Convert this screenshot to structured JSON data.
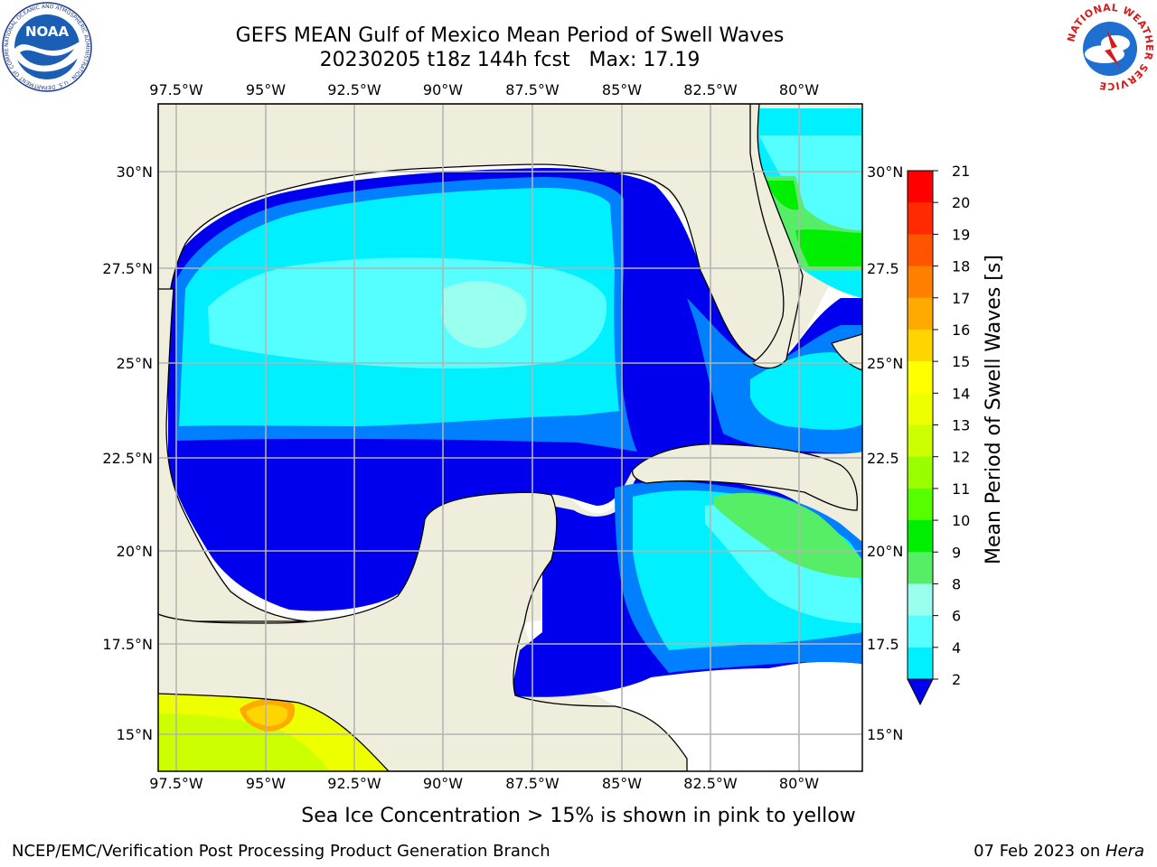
{
  "title": {
    "line1": "GEFS MEAN Gulf of Mexico Mean Period of Swell Waves",
    "line2": "20230205 t18z 144h fcst   Max: 17.19"
  },
  "map": {
    "lon_labels": [
      "97.5°W",
      "95°W",
      "92.5°W",
      "90°W",
      "87.5°W",
      "85°W",
      "82.5°W",
      "80°W"
    ],
    "lat_labels_left": [
      "30°N",
      "27.5°N",
      "25°N",
      "22.5°N",
      "20°N",
      "17.5°N",
      "15°N"
    ],
    "lat_labels_right": [
      "30°N",
      "27.5",
      "25°N",
      "22.5",
      "20°N",
      "17.5",
      "15°N"
    ],
    "colors": {
      "land": "#efeddc",
      "no_data": "#ffffff",
      "grid": "#b4b4b4",
      "coast": "#000000"
    }
  },
  "colorbar": {
    "label": "Mean Period of Swell Waves [s]",
    "ticks": [
      "21",
      "20",
      "19",
      "18",
      "17",
      "16",
      "15",
      "14",
      "13",
      "12",
      "11",
      "10",
      "9",
      "8",
      "6",
      "4",
      "2"
    ],
    "colors": [
      "#ff0000",
      "#ff2a00",
      "#ff5500",
      "#ff8000",
      "#ffaa00",
      "#ffd500",
      "#ffff00",
      "#eeff00",
      "#ccff00",
      "#99ff00",
      "#55ff00",
      "#00ee00",
      "#55ee66",
      "#99ffee",
      "#55ffff",
      "#00f0ff",
      "#0080ff",
      "#0000ee"
    ]
  },
  "caption": "Sea Ice Concentration > 15% is shown in pink to yellow",
  "footer": {
    "left": "NCEP/EMC/Verification Post Processing Product Generation Branch",
    "right_date": "07 Feb 2023 on ",
    "right_host": "Hera"
  },
  "logos": {
    "noaa_text": "NOAA",
    "noaa_ring": "NATIONAL OCEANIC AND ATMOSPHERIC ADMINISTRATION · U.S. DEPARTMENT OF COMMERCE",
    "nws_ring": "NATIONAL WEATHER SERVICE"
  }
}
